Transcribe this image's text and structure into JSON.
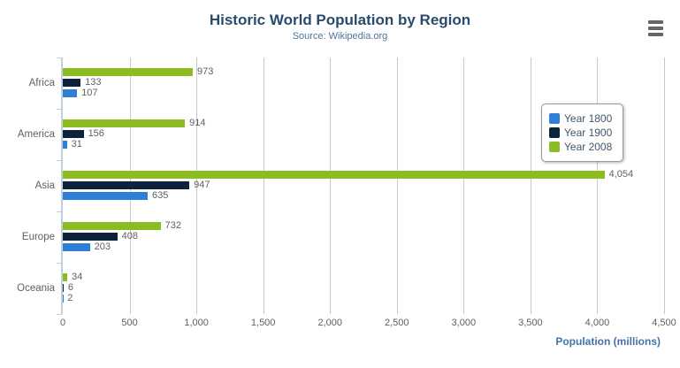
{
  "header": {
    "title": "Historic World Population by Region",
    "subtitle": "Source: Wikipedia.org"
  },
  "export_menu": {
    "icon": "hamburger-icon"
  },
  "chart_data": {
    "type": "bar",
    "title": "Historic World Population by Region",
    "subtitle": "Source: Wikipedia.org",
    "categories": [
      "Africa",
      "America",
      "Asia",
      "Europe",
      "Oceania"
    ],
    "series": [
      {
        "name": "Year 1800",
        "color": "#2f7ed8",
        "values": [
          107,
          31,
          635,
          203,
          2
        ],
        "labels": [
          "107",
          "31",
          "635",
          "203",
          "2"
        ]
      },
      {
        "name": "Year 1900",
        "color": "#0d233a",
        "values": [
          133,
          156,
          947,
          408,
          6
        ],
        "labels": [
          "133",
          "156",
          "947",
          "408",
          "6"
        ]
      },
      {
        "name": "Year 2008",
        "color": "#8bbc21",
        "values": [
          973,
          914,
          4054,
          732,
          34
        ],
        "labels": [
          "973",
          "914",
          "4,054",
          "732",
          "34"
        ]
      }
    ],
    "bar_visual_order_top_to_bottom": [
      "Year 2008",
      "Year 1900",
      "Year 1800"
    ],
    "xlabel": "Population (millions)",
    "value_axis": {
      "min": 0,
      "max": 4500,
      "tick_interval": 500,
      "tick_labels": [
        "0",
        "500",
        "1,000",
        "1,500",
        "2,000",
        "2,500",
        "3,000",
        "3,500",
        "4,000",
        "4,500"
      ]
    },
    "legend": {
      "position": "right-float",
      "items": [
        "Year 1800",
        "Year 1900",
        "Year 2008"
      ]
    },
    "grid": "vertical",
    "colors": {
      "axis_line": "#c0d0e0",
      "gridline": "#c8c8c8",
      "label": "#606060",
      "title": "#274b6d",
      "subtitle": "#4d759e",
      "axis_title": "#4572a7",
      "legend_text": "#3e576f",
      "legend_border": "#999999",
      "menu_icon": "#666666"
    }
  }
}
